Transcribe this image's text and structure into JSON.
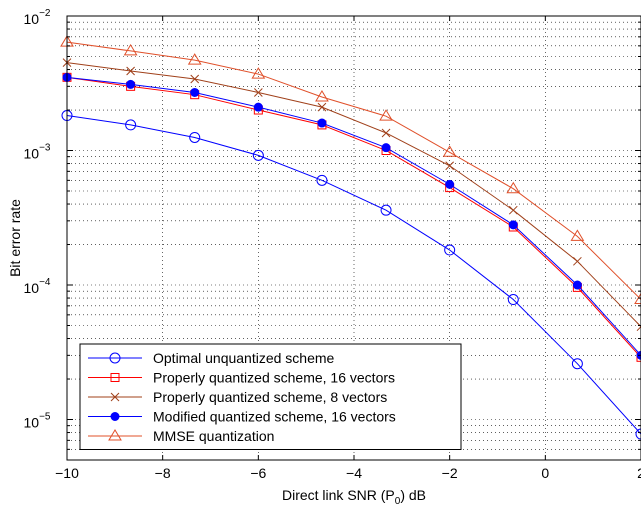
{
  "chart_data": {
    "type": "line",
    "xlabel": "Direct link SNR (P",
    "xlabel_sub": "0",
    "xlabel_tail": ") dB",
    "ylabel": "Bit error rate",
    "xlim": [
      -10,
      2
    ],
    "ylim": [
      5e-06,
      0.01
    ],
    "yscale": "log",
    "grid": "dotted",
    "legend_position": "bottom-left",
    "x_ticks": [
      -10,
      -8,
      -6,
      -4,
      -2,
      0,
      2
    ],
    "x_tick_labels": [
      "−10",
      "−8",
      "−6",
      "−4",
      "−2",
      "0",
      "2"
    ],
    "y_ticks": [
      1e-05,
      0.0001,
      0.001,
      0.01
    ],
    "y_tick_labels": [
      {
        "base": "10",
        "exp": "−5"
      },
      {
        "base": "10",
        "exp": "−4"
      },
      {
        "base": "10",
        "exp": "−3"
      },
      {
        "base": "10",
        "exp": "−2"
      }
    ],
    "x": [
      -10,
      -8.67,
      -7.33,
      -6,
      -4.67,
      -3.33,
      -2,
      -0.67,
      0.67,
      2
    ],
    "series": [
      {
        "name": "Optimal unquantized scheme",
        "color": "#0000ff",
        "marker": "circle-open",
        "values": [
          0.00182,
          0.00155,
          0.00125,
          0.00092,
          0.0006,
          0.00036,
          0.000182,
          7.8e-05,
          2.6e-05,
          7.8e-06
        ]
      },
      {
        "name": "Properly quantized scheme, 16 vectors",
        "color": "#ff0000",
        "marker": "square-open",
        "values": [
          0.0035,
          0.003,
          0.0026,
          0.002,
          0.00155,
          0.001,
          0.00053,
          0.00027,
          9.6e-05,
          2.9e-05
        ]
      },
      {
        "name": "Properly quantized scheme,  8 vectors",
        "color": "#a0401a",
        "marker": "x",
        "values": [
          0.0045,
          0.0039,
          0.0034,
          0.0027,
          0.0021,
          0.00135,
          0.00077,
          0.00036,
          0.00015,
          4.9e-05
        ]
      },
      {
        "name": "Modified quantized scheme,  16 vectors",
        "color": "#0000ff",
        "marker": "circle-filled",
        "values": [
          0.0035,
          0.0031,
          0.0027,
          0.0021,
          0.0016,
          0.00105,
          0.00056,
          0.00028,
          0.0001,
          3e-05
        ]
      },
      {
        "name": "MMSE quantization",
        "color": "#e0502a",
        "marker": "triangle-open",
        "values": [
          0.0064,
          0.0055,
          0.0047,
          0.0037,
          0.0025,
          0.0018,
          0.00097,
          0.00052,
          0.00023,
          7.8e-05
        ]
      }
    ]
  }
}
